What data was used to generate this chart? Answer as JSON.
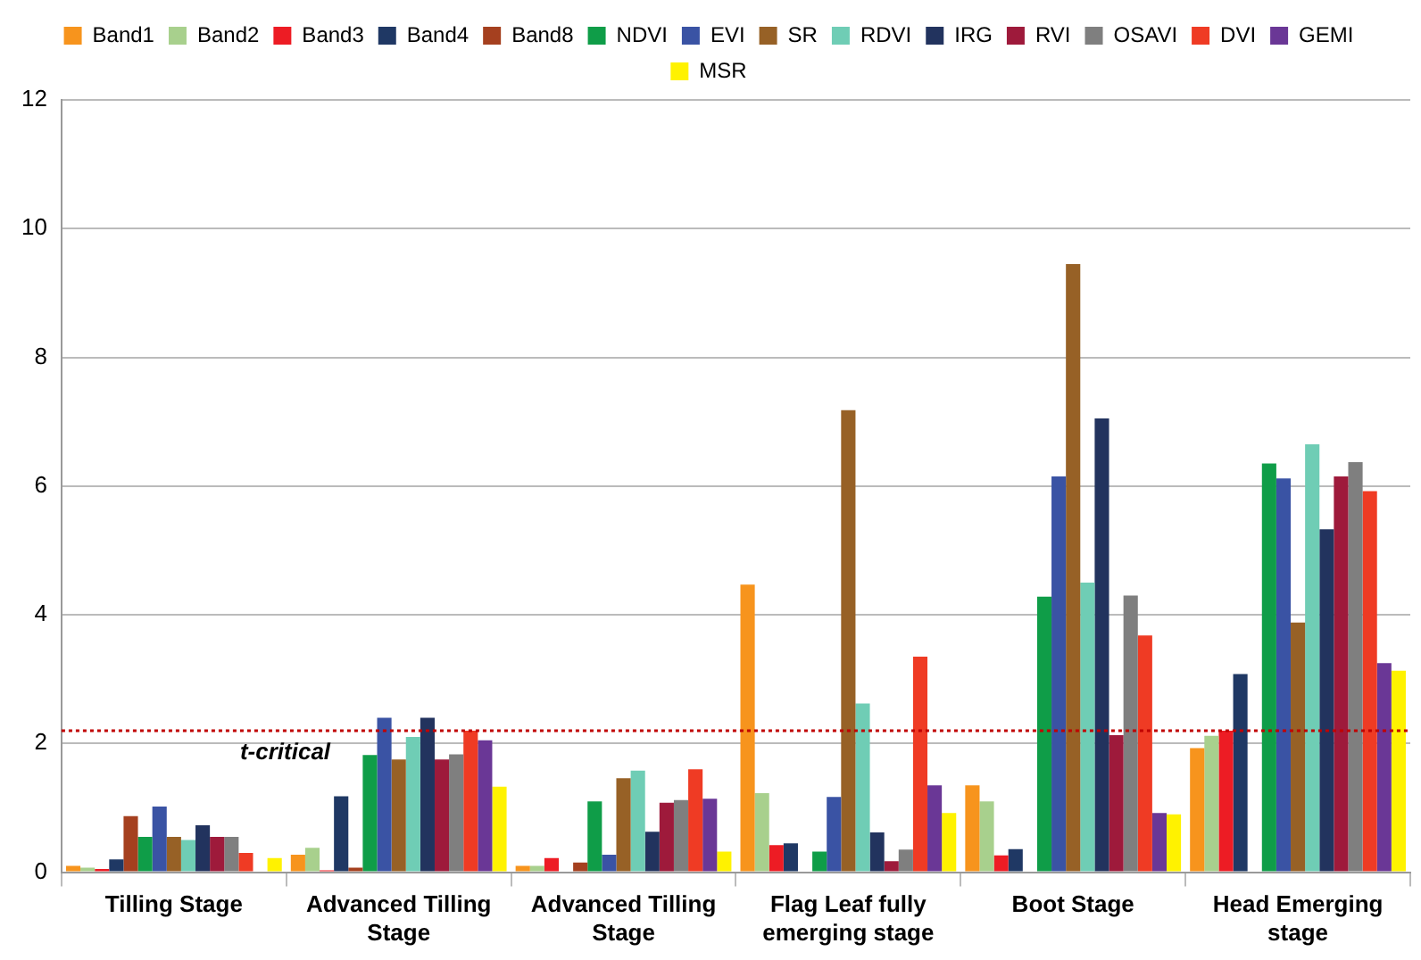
{
  "chart_data": {
    "type": "bar",
    "categories": [
      "Tilling Stage",
      "Advanced Tilling Stage",
      "Advanced Tilling Stage",
      "Flag Leaf fully emerging stage",
      "Boot Stage",
      "Head Emerging stage"
    ],
    "series": [
      {
        "name": "Band1",
        "color": "#f7941d",
        "values": [
          0.1,
          0.27,
          0.1,
          4.47,
          1.35,
          1.93
        ]
      },
      {
        "name": "Band2",
        "color": "#a8d08d",
        "values": [
          0.07,
          0.38,
          0.1,
          1.23,
          1.1,
          2.12
        ]
      },
      {
        "name": "Band3",
        "color": "#ed1c24",
        "values": [
          0.05,
          0.03,
          0.22,
          0.42,
          0.26,
          2.2
        ]
      },
      {
        "name": "Band4",
        "color": "#1f3864",
        "values": [
          0.2,
          1.18,
          0,
          0.45,
          0.36,
          3.08
        ]
      },
      {
        "name": "Band8",
        "color": "#a5401f",
        "values": [
          0.87,
          0.07,
          0.15,
          0,
          0,
          0
        ]
      },
      {
        "name": "NDVI",
        "color": "#0f9d48",
        "values": [
          0.55,
          1.82,
          1.1,
          0.32,
          4.28,
          6.35
        ]
      },
      {
        "name": "EVI",
        "color": "#3a53a4",
        "values": [
          1.02,
          2.4,
          0.27,
          1.17,
          6.15,
          6.12
        ]
      },
      {
        "name": "SR",
        "color": "#976126",
        "values": [
          0.55,
          1.75,
          1.46,
          7.18,
          9.45,
          3.88
        ]
      },
      {
        "name": "RDVI",
        "color": "#6fcdb5",
        "values": [
          0.5,
          2.1,
          1.58,
          2.62,
          4.5,
          6.65
        ]
      },
      {
        "name": "IRG",
        "color": "#22335e",
        "values": [
          0.73,
          2.4,
          0.63,
          0.62,
          7.05,
          5.33
        ]
      },
      {
        "name": "RVI",
        "color": "#9e1a3b",
        "values": [
          0.55,
          1.75,
          1.08,
          0.17,
          2.13,
          6.15
        ]
      },
      {
        "name": "OSAVI",
        "color": "#7f7f7f",
        "values": [
          0.55,
          1.83,
          1.12,
          0.35,
          4.3,
          6.37
        ]
      },
      {
        "name": "DVI",
        "color": "#ef3b24",
        "values": [
          0.3,
          2.2,
          1.6,
          3.35,
          3.68,
          5.92
        ]
      },
      {
        "name": "GEMI",
        "color": "#6a3796",
        "values": [
          null,
          2.05,
          1.14,
          1.35,
          0.92,
          3.25
        ]
      },
      {
        "name": "MSR",
        "color": "#fff200",
        "values": [
          0.22,
          1.33,
          0.32,
          0.92,
          0.9,
          3.13
        ]
      }
    ],
    "ylim": [
      0,
      12
    ],
    "yticks": [
      0,
      2,
      4,
      6,
      8,
      10,
      12
    ],
    "grid": "y",
    "legend": "top",
    "ref_lines": [
      {
        "axis": "y",
        "value": 2.2,
        "label": "t-critical",
        "color": "#c00000",
        "line_style": "dotted"
      }
    ]
  }
}
